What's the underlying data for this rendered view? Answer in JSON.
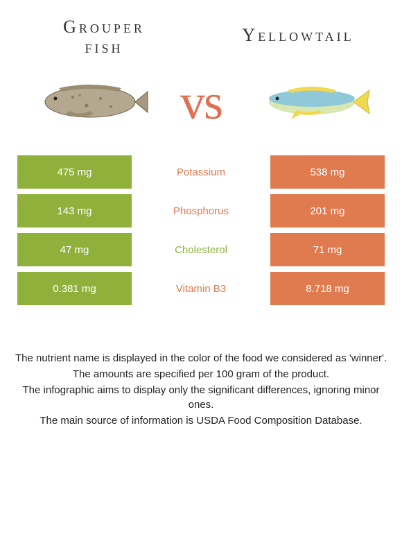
{
  "header": {
    "left_title_line1": "Grouper",
    "left_title_line2": "fish",
    "right_title": "Yellowtail"
  },
  "vs": {
    "text": "vs"
  },
  "colors": {
    "left_cell": "#8fb13c",
    "right_cell": "#e07a4f",
    "vs_color": "#e07050",
    "green_text": "#8fb13c",
    "orange_text": "#e07a4f"
  },
  "nutrients": [
    {
      "left": "475 mg",
      "name": "Potassium",
      "right": "538 mg",
      "winner": "right"
    },
    {
      "left": "143 mg",
      "name": "Phosphorus",
      "right": "201 mg",
      "winner": "right"
    },
    {
      "left": "47 mg",
      "name": "Cholesterol",
      "right": "71 mg",
      "winner": "left"
    },
    {
      "left": "0.381 mg",
      "name": "Vitamin B3",
      "right": "8.718 mg",
      "winner": "right"
    }
  ],
  "footer": {
    "line1": "The nutrient name is displayed in the color of the food we considered as 'winner'.",
    "line2": "The amounts are specified per 100 gram of the product.",
    "line3": "The infographic aims to display only the significant differences, ignoring minor ones.",
    "line4": "The main source of information is USDA Food Composition Database."
  }
}
